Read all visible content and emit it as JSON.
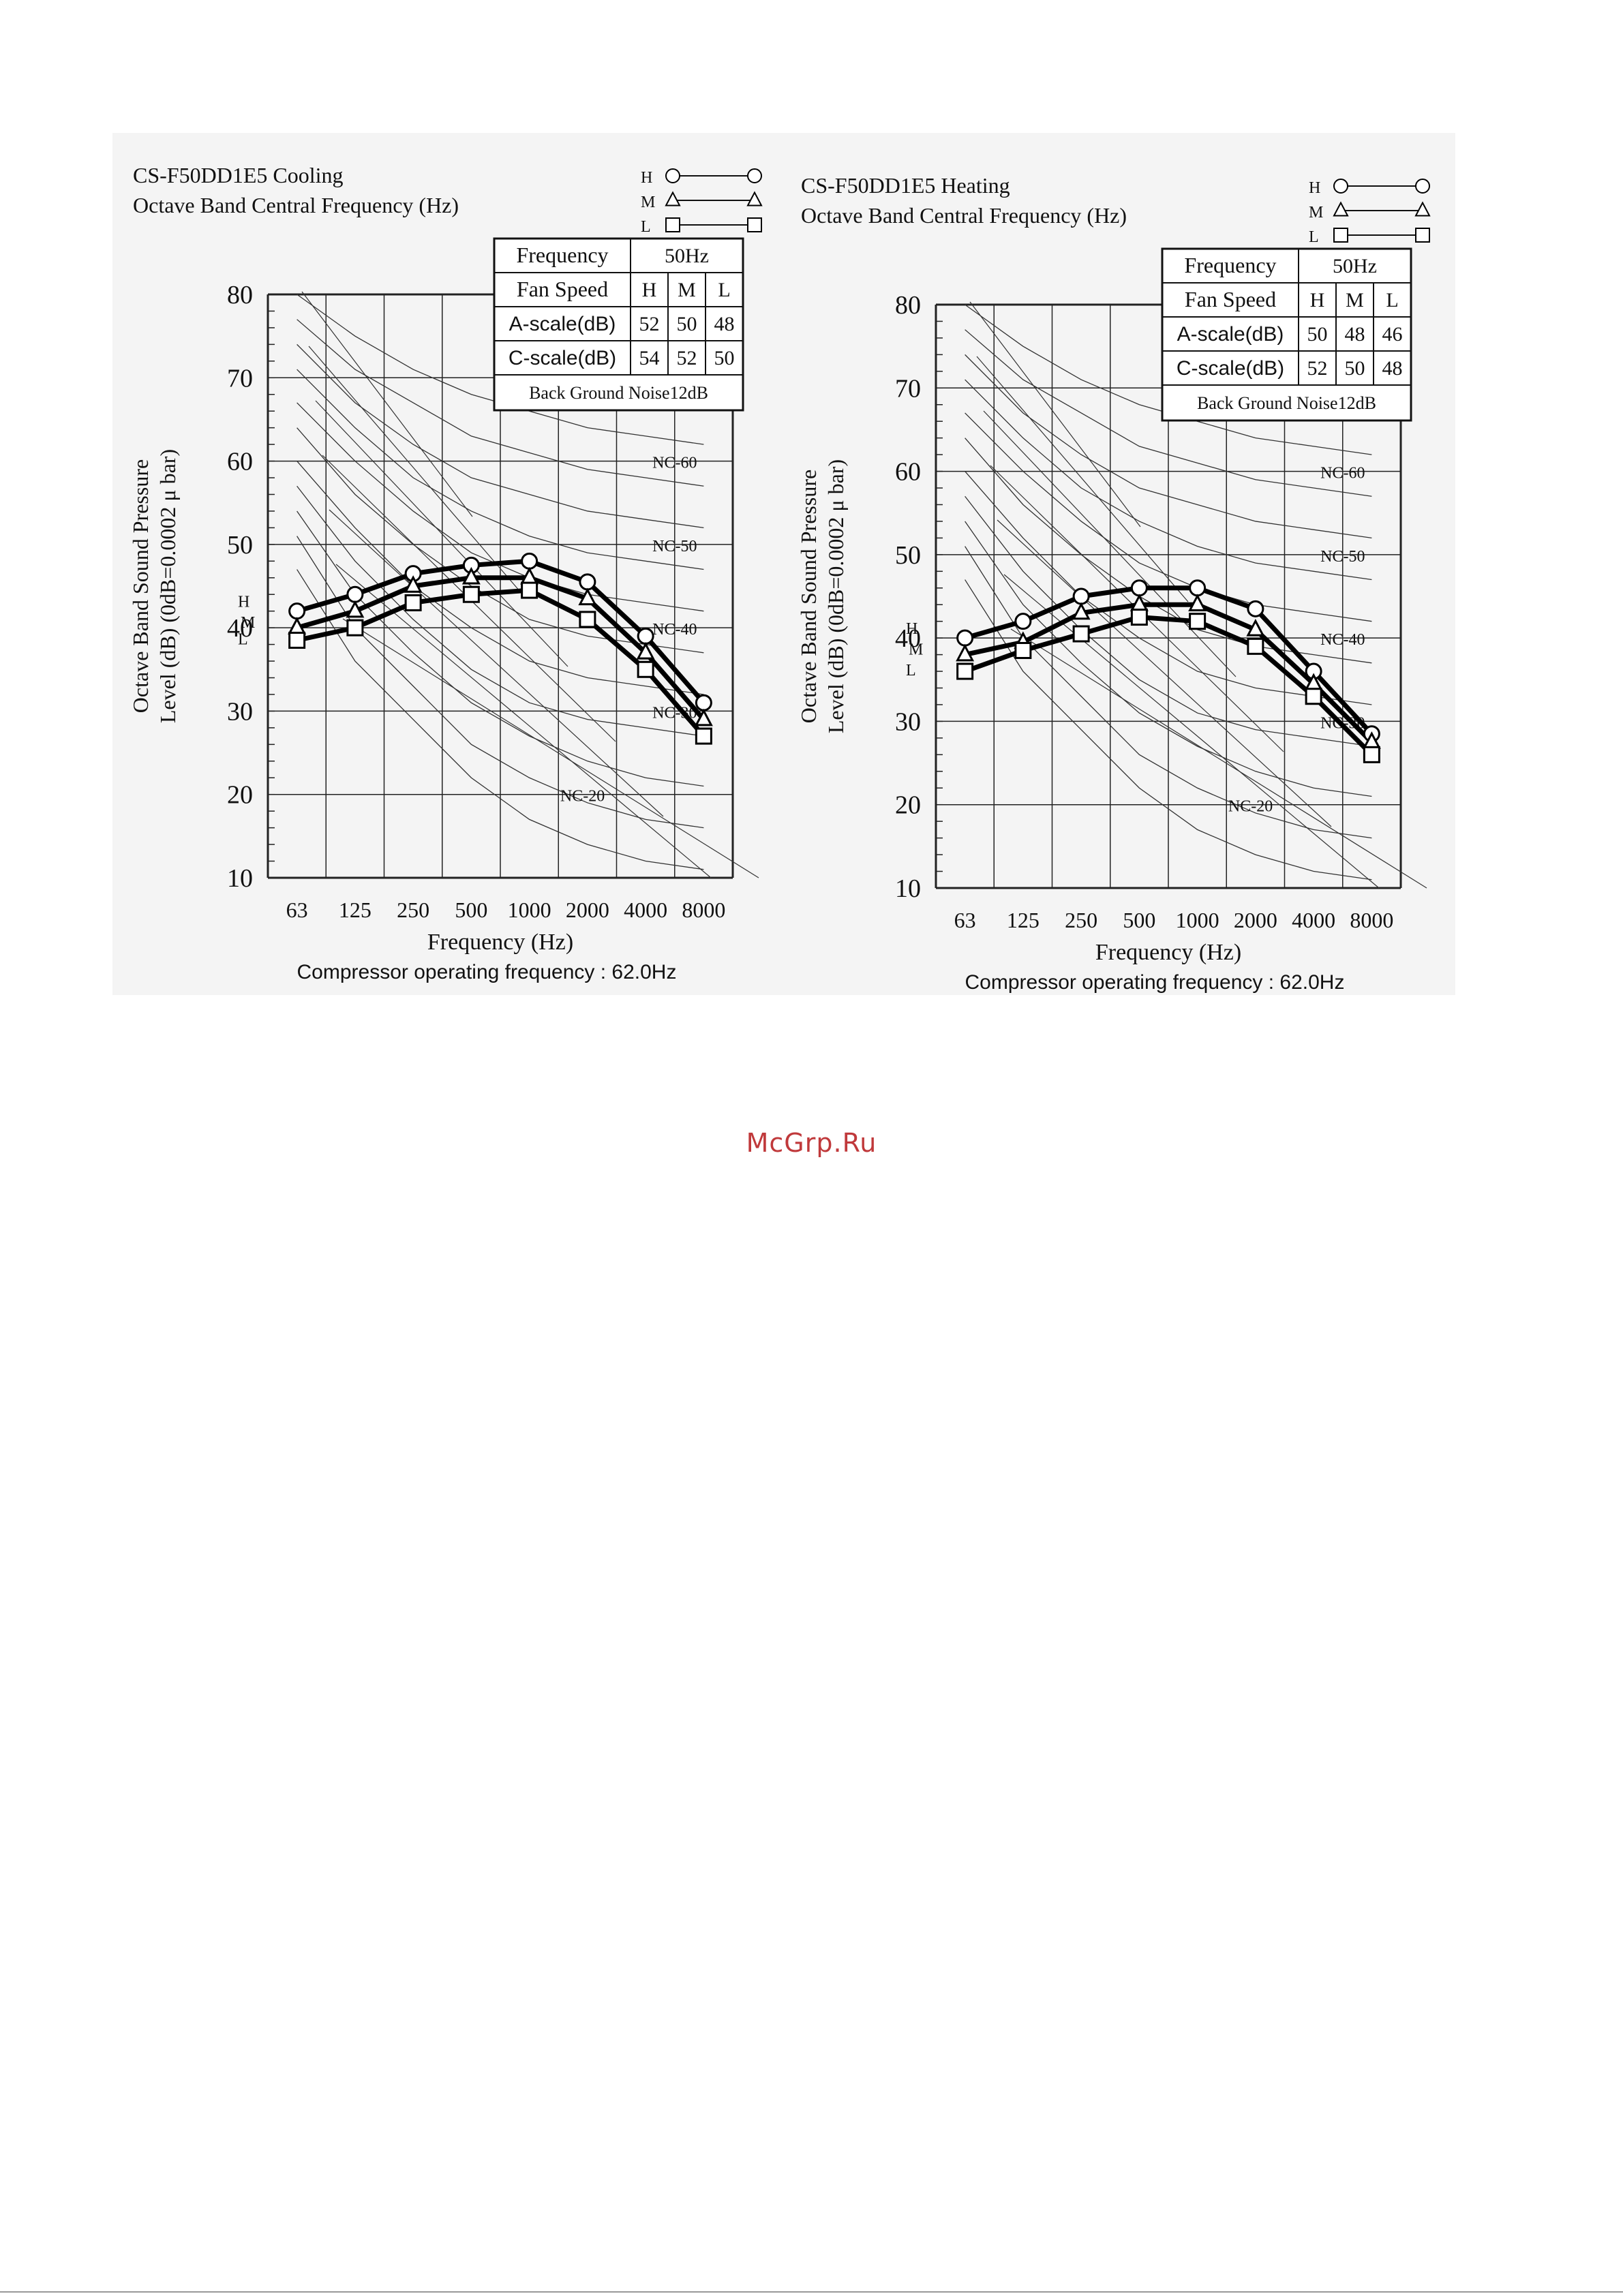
{
  "watermark": "McGrp.Ru",
  "chart_data": [
    {
      "type": "line",
      "model": "CS-F50DD1E5",
      "mode": "Cooling",
      "title": "CS-F50DD1E5   Cooling",
      "subtitle": "Octave Band Central Frequency (Hz)",
      "ylabel_1": "Octave Band Sound Pressure",
      "ylabel_2": "Level (dB) (0dB=0.0002 μ bar)",
      "xlabel": "Frequency (Hz)",
      "caption": "Compressor operating frequency : 62.0Hz",
      "categories": [
        "63",
        "125",
        "250",
        "500",
        "1000",
        "2000",
        "4000",
        "8000"
      ],
      "ylim": [
        10,
        80
      ],
      "yticks": [
        "10",
        "20",
        "30",
        "40",
        "50",
        "60",
        "70",
        "80"
      ],
      "grid": true,
      "legend": [
        {
          "code": "H",
          "marker": "circle"
        },
        {
          "code": "M",
          "marker": "triangle"
        },
        {
          "code": "L",
          "marker": "square"
        }
      ],
      "series": [
        {
          "name": "H",
          "marker": "circle",
          "values": [
            42,
            44,
            46.5,
            47.5,
            48,
            45.5,
            39,
            31
          ]
        },
        {
          "name": "M",
          "marker": "triangle",
          "values": [
            40,
            42,
            45,
            46,
            46,
            43.5,
            37,
            29
          ]
        },
        {
          "name": "L",
          "marker": "square",
          "values": [
            38.5,
            40,
            43,
            44,
            44.5,
            41,
            35,
            27
          ]
        }
      ],
      "nc_labels": [
        {
          "label": "NC-60",
          "value": 60
        },
        {
          "label": "NC-50",
          "value": 50
        },
        {
          "label": "NC-40",
          "value": 40
        },
        {
          "label": "NC-30",
          "value": 30
        },
        {
          "label": "NC-20",
          "value": 20
        }
      ],
      "info_table": {
        "frequency_label": "Frequency",
        "frequency_value": "50Hz",
        "fan_speed_label": "Fan Speed",
        "fan_speeds": [
          "H",
          "M",
          "L"
        ],
        "a_scale_label": "A-scale(dB)",
        "a_scale": [
          "52",
          "50",
          "48"
        ],
        "c_scale_label": "C-scale(dB)",
        "c_scale": [
          "54",
          "52",
          "50"
        ],
        "background_noise": "Back Ground Noise12dB"
      }
    },
    {
      "type": "line",
      "model": "CS-F50DD1E5",
      "mode": "Heating",
      "title": "CS-F50DD1E5   Heating",
      "subtitle": "Octave Band Central Frequency (Hz)",
      "ylabel_1": "Octave Band Sound Pressure",
      "ylabel_2": "Level (dB) (0dB=0.0002 μ bar)",
      "xlabel": "Frequency (Hz)",
      "caption": "Compressor operating frequency : 62.0Hz",
      "categories": [
        "63",
        "125",
        "250",
        "500",
        "1000",
        "2000",
        "4000",
        "8000"
      ],
      "ylim": [
        10,
        80
      ],
      "yticks": [
        "10",
        "20",
        "30",
        "40",
        "50",
        "60",
        "70",
        "80"
      ],
      "grid": true,
      "legend": [
        {
          "code": "H",
          "marker": "circle"
        },
        {
          "code": "M",
          "marker": "triangle"
        },
        {
          "code": "L",
          "marker": "square"
        }
      ],
      "series": [
        {
          "name": "H",
          "marker": "circle",
          "values": [
            40,
            42,
            45,
            46,
            46,
            43.5,
            36,
            28.5
          ]
        },
        {
          "name": "M",
          "marker": "triangle",
          "values": [
            38,
            39.5,
            43,
            44,
            44,
            41,
            34.5,
            27.5
          ]
        },
        {
          "name": "L",
          "marker": "square",
          "values": [
            36,
            38.5,
            40.5,
            42.5,
            42,
            39,
            33,
            26
          ]
        }
      ],
      "nc_labels": [
        {
          "label": "NC-60",
          "value": 60
        },
        {
          "label": "NC-50",
          "value": 50
        },
        {
          "label": "NC-40",
          "value": 40
        },
        {
          "label": "NC-30",
          "value": 30
        },
        {
          "label": "NC-20",
          "value": 20
        }
      ],
      "info_table": {
        "frequency_label": "Frequency",
        "frequency_value": "50Hz",
        "fan_speed_label": "Fan Speed",
        "fan_speeds": [
          "H",
          "M",
          "L"
        ],
        "a_scale_label": "A-scale(dB)",
        "a_scale": [
          "50",
          "48",
          "46"
        ],
        "c_scale_label": "C-scale(dB)",
        "c_scale": [
          "52",
          "50",
          "48"
        ],
        "background_noise": "Back Ground Noise12dB"
      }
    }
  ]
}
